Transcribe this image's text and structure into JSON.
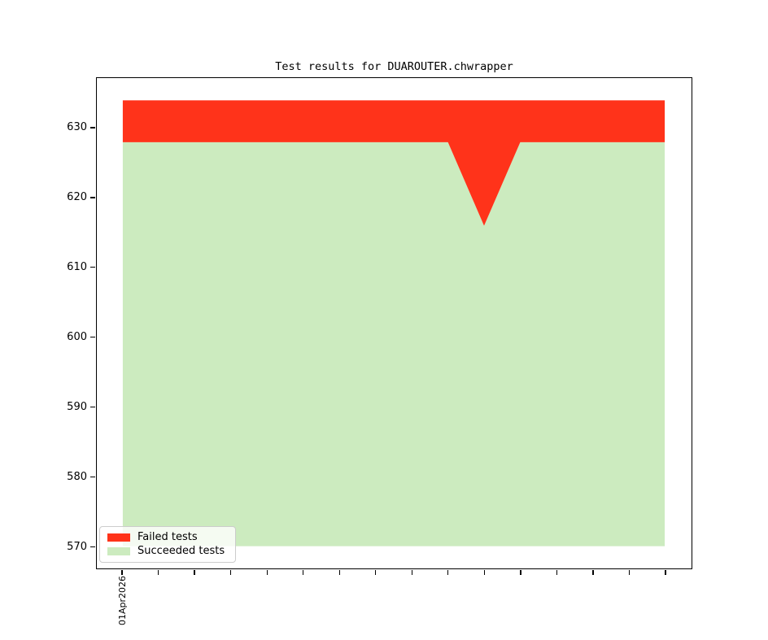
{
  "title": "Test results for DUAROUTER.chwrapper",
  "chart_data": {
    "type": "area",
    "stacked": true,
    "title": "Test results for DUAROUTER.chwrapper",
    "grid": false,
    "legend_position": "lower left",
    "ylim": [
      566.8,
      637.2
    ],
    "yticks": [
      570,
      580,
      590,
      600,
      610,
      620,
      630
    ],
    "fill_baseline": 570,
    "x_n_points": 16,
    "x_tick_labels": [
      "01Apr2026",
      "",
      "",
      "",
      "",
      "",
      "",
      "",
      "",
      "",
      "",
      "",
      "",
      "",
      "",
      ""
    ],
    "series": [
      {
        "name": "Failed tests",
        "color": "#ff331a",
        "values": [
          6,
          6,
          6,
          6,
          6,
          6,
          6,
          6,
          6,
          6,
          18,
          6,
          6,
          6,
          6,
          6
        ]
      },
      {
        "name": "Succeeded tests",
        "color": "#ccebbf",
        "values": [
          628,
          628,
          628,
          628,
          628,
          628,
          628,
          628,
          628,
          628,
          616,
          628,
          628,
          628,
          628,
          628
        ]
      }
    ],
    "stack_order_bottom_to_top": [
      "Succeeded tests",
      "Failed tests"
    ],
    "totals": [
      634,
      634,
      634,
      634,
      634,
      634,
      634,
      634,
      634,
      634,
      634,
      634,
      634,
      634,
      634,
      634
    ]
  },
  "legend": {
    "items": [
      {
        "label": "Failed tests",
        "color": "#ff331a"
      },
      {
        "label": "Succeeded tests",
        "color": "#ccebbf"
      }
    ]
  }
}
